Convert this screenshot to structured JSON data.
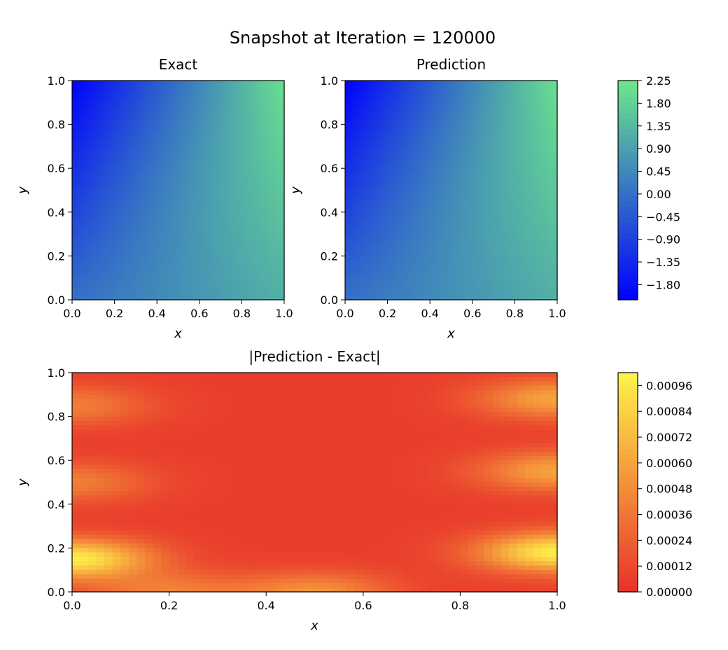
{
  "title": "Snapshot at Iteration = 120000",
  "chart_data": [
    {
      "type": "heatmap",
      "title": "Exact",
      "xlabel": "x",
      "ylabel": "y",
      "xlim": [
        0.0,
        1.0
      ],
      "ylim": [
        0.0,
        1.0
      ],
      "xticks": [
        "0.0",
        "0.2",
        "0.4",
        "0.6",
        "0.8",
        "1.0"
      ],
      "yticks": [
        "0.0",
        "0.2",
        "0.4",
        "0.6",
        "0.8",
        "1.0"
      ],
      "corner_values": {
        "x0_y0": 0.0,
        "x1_y0": 1.2,
        "x0_y1": -2.1,
        "x1_y1": 2.1
      },
      "colormap": "winter",
      "shared_colorbar": 0
    },
    {
      "type": "heatmap",
      "title": "Prediction",
      "xlabel": "x",
      "ylabel": "y",
      "xlim": [
        0.0,
        1.0
      ],
      "ylim": [
        0.0,
        1.0
      ],
      "xticks": [
        "0.0",
        "0.2",
        "0.4",
        "0.6",
        "0.8",
        "1.0"
      ],
      "yticks": [
        "0.0",
        "0.2",
        "0.4",
        "0.6",
        "0.8",
        "1.0"
      ],
      "corner_values": {
        "x0_y0": 0.0,
        "x1_y0": 1.2,
        "x0_y1": -2.1,
        "x1_y1": 2.1
      },
      "colormap": "winter",
      "shared_colorbar": 0
    },
    {
      "type": "heatmap",
      "title": "|Prediction - Exact|",
      "xlabel": "x",
      "ylabel": "y",
      "xlim": [
        0.0,
        1.0
      ],
      "ylim": [
        0.0,
        1.0
      ],
      "xticks": [
        "0.0",
        "0.2",
        "0.4",
        "0.6",
        "0.8",
        "1.0"
      ],
      "yticks": [
        "0.0",
        "0.2",
        "0.4",
        "0.6",
        "0.8",
        "1.0"
      ],
      "hotspots": [
        {
          "x": 0.0,
          "y": 0.15,
          "value": 0.00098
        },
        {
          "x": 1.0,
          "y": 0.18,
          "value": 0.00098
        },
        {
          "x": 0.0,
          "y": 0.5,
          "value": 0.0004
        },
        {
          "x": 1.0,
          "y": 0.55,
          "value": 0.0006
        },
        {
          "x": 0.0,
          "y": 0.85,
          "value": 0.0004
        },
        {
          "x": 1.0,
          "y": 0.88,
          "value": 0.0006
        },
        {
          "x": 0.5,
          "y": 0.0,
          "value": 0.0005
        },
        {
          "x": 0.2,
          "y": 0.0,
          "value": 0.0004
        }
      ],
      "colormap": "autumn",
      "shared_colorbar": 1
    }
  ],
  "colorbars": [
    {
      "colormap": "winter",
      "range": [
        -2.1,
        2.25
      ],
      "color_low": "#0000ff",
      "color_high": "#6de88a",
      "ticks": [
        "2.25",
        "1.80",
        "1.35",
        "0.90",
        "0.45",
        "0.00",
        "−0.45",
        "−0.90",
        "−1.35",
        "−1.80"
      ],
      "tick_values": [
        2.25,
        1.8,
        1.35,
        0.9,
        0.45,
        0.0,
        -0.45,
        -0.9,
        -1.35,
        -1.8
      ]
    },
    {
      "colormap": "autumn",
      "range": [
        0.0,
        0.00102
      ],
      "color_low": "#e8322a",
      "color_high": "#fff34a",
      "ticks": [
        "0.00096",
        "0.00084",
        "0.00072",
        "0.00060",
        "0.00048",
        "0.00036",
        "0.00024",
        "0.00012",
        "0.00000"
      ],
      "tick_values": [
        0.00096,
        0.00084,
        0.00072,
        0.0006,
        0.00048,
        0.00036,
        0.00024,
        0.00012,
        0.0
      ]
    }
  ]
}
